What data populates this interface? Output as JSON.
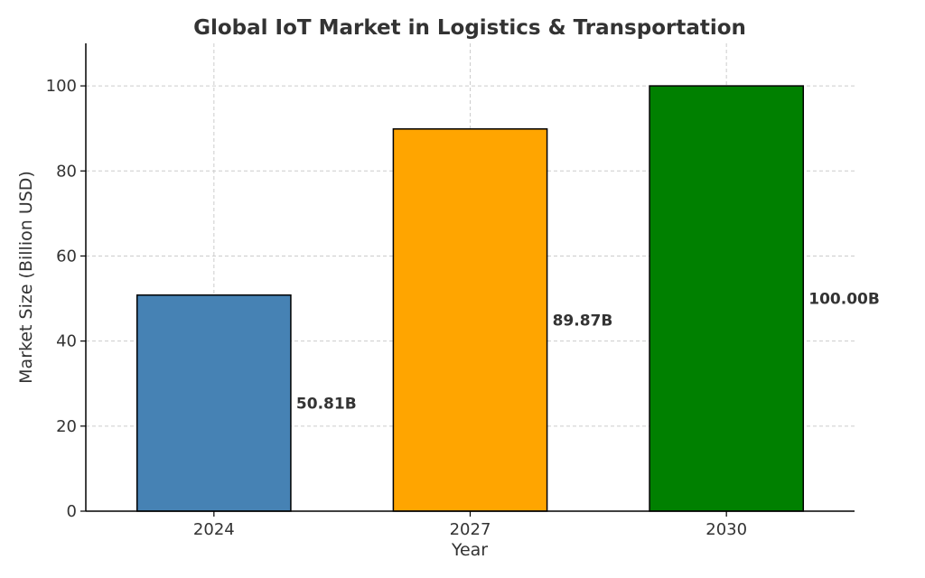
{
  "chart_data": {
    "type": "bar",
    "title": "Global IoT Market in Logistics & Transportation",
    "xlabel": "Year",
    "ylabel": "Market Size (Billion USD)",
    "categories": [
      "2024",
      "2027",
      "2030"
    ],
    "values": [
      50.81,
      89.87,
      100.0
    ],
    "value_labels": [
      "50.81B",
      "89.87B",
      "100.00B"
    ],
    "colors": [
      "#4682b4",
      "#ffa500",
      "#008000"
    ],
    "ylim": [
      0,
      110
    ],
    "yticks": [
      0,
      20,
      40,
      60,
      80,
      100
    ],
    "grid": true,
    "legend": "none"
  }
}
